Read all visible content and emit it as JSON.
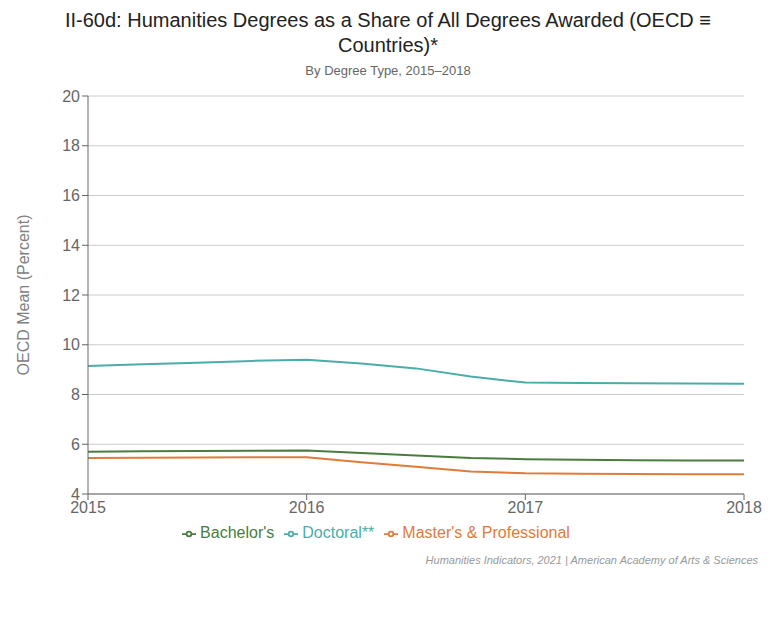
{
  "chart_data": {
    "type": "line",
    "title": "II-60d: Humanities Degrees as a Share of All Degrees Awarded (OECD ≡\nCountries)*",
    "subtitle": "By Degree Type, 2015–2018",
    "ylabel": "OECD Mean (Percent)",
    "annotations": [
      "Humanities Indicators, 2021 | American Academy of Arts & Sciences"
    ],
    "x": [
      2015,
      2015.25,
      2015.5,
      2015.75,
      2016,
      2016.25,
      2016.5,
      2016.75,
      2017,
      2017.25,
      2017.5,
      2017.75,
      2018
    ],
    "series": [
      {
        "name": "Bachelor's",
        "color": "#4a7c3f",
        "values": [
          5.7,
          5.72,
          5.73,
          5.74,
          5.75,
          5.65,
          5.55,
          5.45,
          5.4,
          5.38,
          5.36,
          5.35,
          5.35
        ]
      },
      {
        "name": "Master's & Professional",
        "color": "#e07b39",
        "values": [
          5.45,
          5.46,
          5.47,
          5.48,
          5.48,
          5.28,
          5.1,
          4.9,
          4.83,
          4.81,
          4.8,
          4.79,
          4.79
        ]
      },
      {
        "name": "Doctoral**",
        "color": "#4aada8",
        "values": [
          9.15,
          9.22,
          9.28,
          9.35,
          9.4,
          9.25,
          9.05,
          8.72,
          8.48,
          8.46,
          8.45,
          8.44,
          8.43
        ]
      }
    ],
    "xlim": [
      2015,
      2018
    ],
    "xticks": [
      2015,
      2016,
      2017,
      2018
    ],
    "ylim": [
      4,
      20
    ],
    "yticks": [
      4,
      6,
      8,
      10,
      12,
      14,
      16,
      18,
      20
    ],
    "grid": true,
    "legend": "bottom"
  }
}
